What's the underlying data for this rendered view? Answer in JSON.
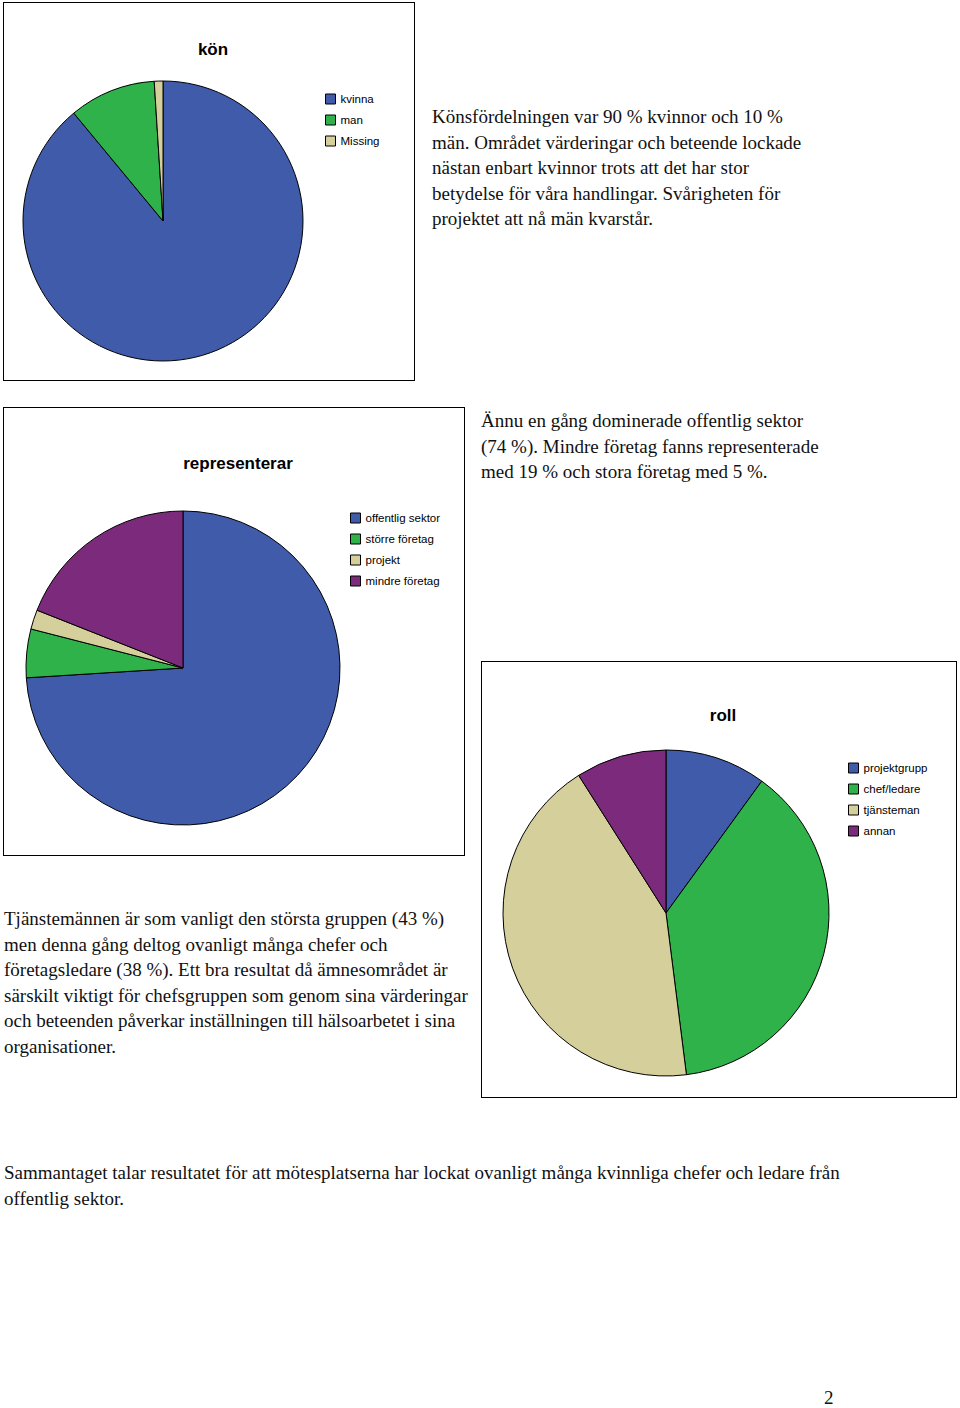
{
  "chart_data": [
    {
      "type": "pie",
      "title": "kön",
      "categories": [
        "kvinna",
        "man",
        "Missing"
      ],
      "values": [
        89,
        10,
        1
      ],
      "colors": [
        "#3f5ba9",
        "#2fb24a",
        "#d5d09b"
      ],
      "legend": "right"
    },
    {
      "type": "pie",
      "title": "representerar",
      "categories": [
        "offentlig sektor",
        "större företag",
        "projekt",
        "mindre företag"
      ],
      "values": [
        74,
        5,
        2,
        19
      ],
      "colors": [
        "#3f5ba9",
        "#2fb24a",
        "#d5d09b",
        "#7b2a7c"
      ],
      "legend": "right"
    },
    {
      "type": "pie",
      "title": "roll",
      "categories": [
        "projektgrupp",
        "chef/ledare",
        "tjänsteman",
        "annan"
      ],
      "values": [
        10,
        38,
        43,
        9
      ],
      "colors": [
        "#3f5ba9",
        "#2fb24a",
        "#d5d09b",
        "#7b2a7c"
      ],
      "legend": "right"
    }
  ],
  "captions": [
    "Könsfördelningen var 90 % kvinnor och 10 % män. Området värderingar och beteende lockade nästan enbart kvinnor trots att det har stor betydelse för våra handlingar. Svårigheten för projektet att nå män kvarstår.",
    "Ännu en gång dominerade offentlig sektor (74 %). Mindre företag fanns representerade med 19 % och stora företag med 5 %.",
    "Tjänstemännen är som vanligt den största gruppen (43 %) men denna gång deltog ovanligt många chefer och företagsledare (38 %). Ett bra resultat då ämnesområdet är särskilt viktigt för chefsgruppen som genom sina värderingar och beteenden påverkar inställningen till hälsoarbetet i sina organisationer."
  ],
  "summary": "Sammantaget talar resultatet för att mötesplatserna har lockat ovanligt många kvinnliga chefer och ledare från offentlig sektor.",
  "page_number": 2
}
